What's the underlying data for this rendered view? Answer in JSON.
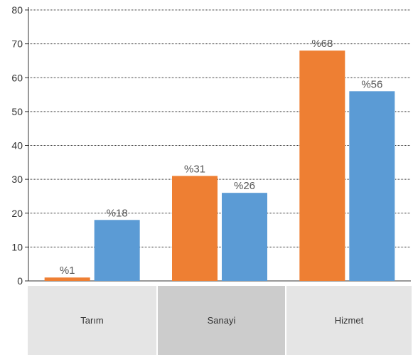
{
  "chart_data": {
    "type": "bar",
    "categories": [
      "Tarım",
      "Sanayi",
      "Hizmet"
    ],
    "series": [
      {
        "values": [
          1,
          31,
          68
        ],
        "labels": [
          "%1",
          "%31",
          "%68"
        ],
        "color": "#ee7f33"
      },
      {
        "values": [
          18,
          26,
          56
        ],
        "labels": [
          "%18",
          "%26",
          "%56"
        ],
        "color": "#5b9bd5"
      }
    ],
    "ylim": [
      0,
      80
    ],
    "yticks": [
      0,
      10,
      20,
      30,
      40,
      50,
      60,
      70,
      80
    ],
    "grid": true,
    "category_panel_colors": [
      "#e5e5e5",
      "#cccccc",
      "#e5e5e5"
    ]
  }
}
